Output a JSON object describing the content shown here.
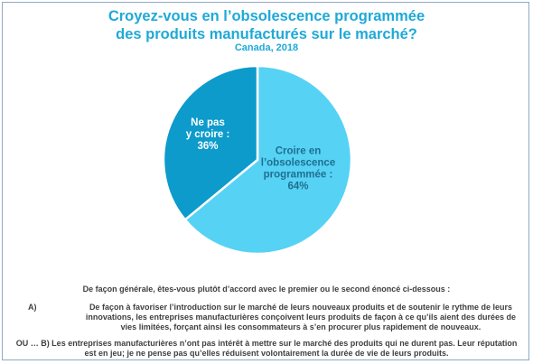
{
  "chart_data": {
    "type": "pie",
    "title": "Croyez-vous en l’obsolescence programmée des produits manufacturés sur le marché?",
    "title_lines": [
      "Croyez-vous en l’obsolescence programmée",
      "des produits manufacturés sur le marché?"
    ],
    "subtitle": "Canada, 2018",
    "slices": [
      {
        "label": "Croire en l’obsolescence programmée",
        "label_lines": [
          "Croire en",
          "l’obsolescence",
          "programmée :",
          "64%"
        ],
        "value": 64,
        "color": "#56d2f5"
      },
      {
        "label": "Ne pas y croire",
        "label_lines": [
          "Ne pas",
          "y croire :",
          "36%"
        ],
        "value": 36,
        "color": "#0c9bcb"
      }
    ]
  },
  "footer": {
    "question": "De façon générale, êtes-vous plutôt d’accord avec le premier ou le second énoncé ci-dessous :",
    "option_a_letter": "A)",
    "option_a_text": "De façon à favoriser l’introduction sur le marché de leurs nouveaux produits et de soutenir le rythme de leurs innovations, les entreprises manufacturières conçoivent leurs produits de façon à ce qu’ils aient des durées de vies limitées, forçant ainsi les consommateurs à s’en procurer plus rapidement de nouveaux.",
    "option_b_text": "OU … B) Les entreprises manufacturières n’ont pas intérêt à mettre sur le marché des produits qui ne durent pas. Leur réputation est en jeu; je ne pense pas qu’elles réduisent volontairement la durée de vie de leurs produits."
  }
}
